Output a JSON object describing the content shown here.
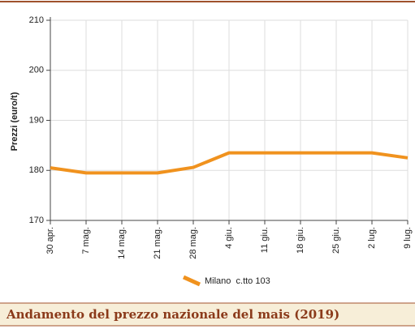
{
  "chart_data": {
    "type": "line",
    "title": "Andamento del prezzo nazionale del mais (2019)",
    "y_label": "Prezzi (euro/t)",
    "categories": [
      "30 apr.",
      "7 mag.",
      "14 mag.",
      "21 mag.",
      "28 mag.",
      "4 giu.",
      "11 giu.",
      "18 giu.",
      "25 giu.",
      "2 lug.",
      "9 lug."
    ],
    "series": [
      {
        "name": "Milano  c.tto 103",
        "color": "#f0921e",
        "values": [
          180.5,
          179.5,
          179.5,
          179.5,
          180.6,
          183.5,
          183.5,
          183.5,
          183.5,
          183.5,
          182.5
        ]
      }
    ],
    "ylim": [
      170,
      210
    ],
    "yticks": [
      170,
      180,
      190,
      200,
      210
    ],
    "grid": true
  }
}
